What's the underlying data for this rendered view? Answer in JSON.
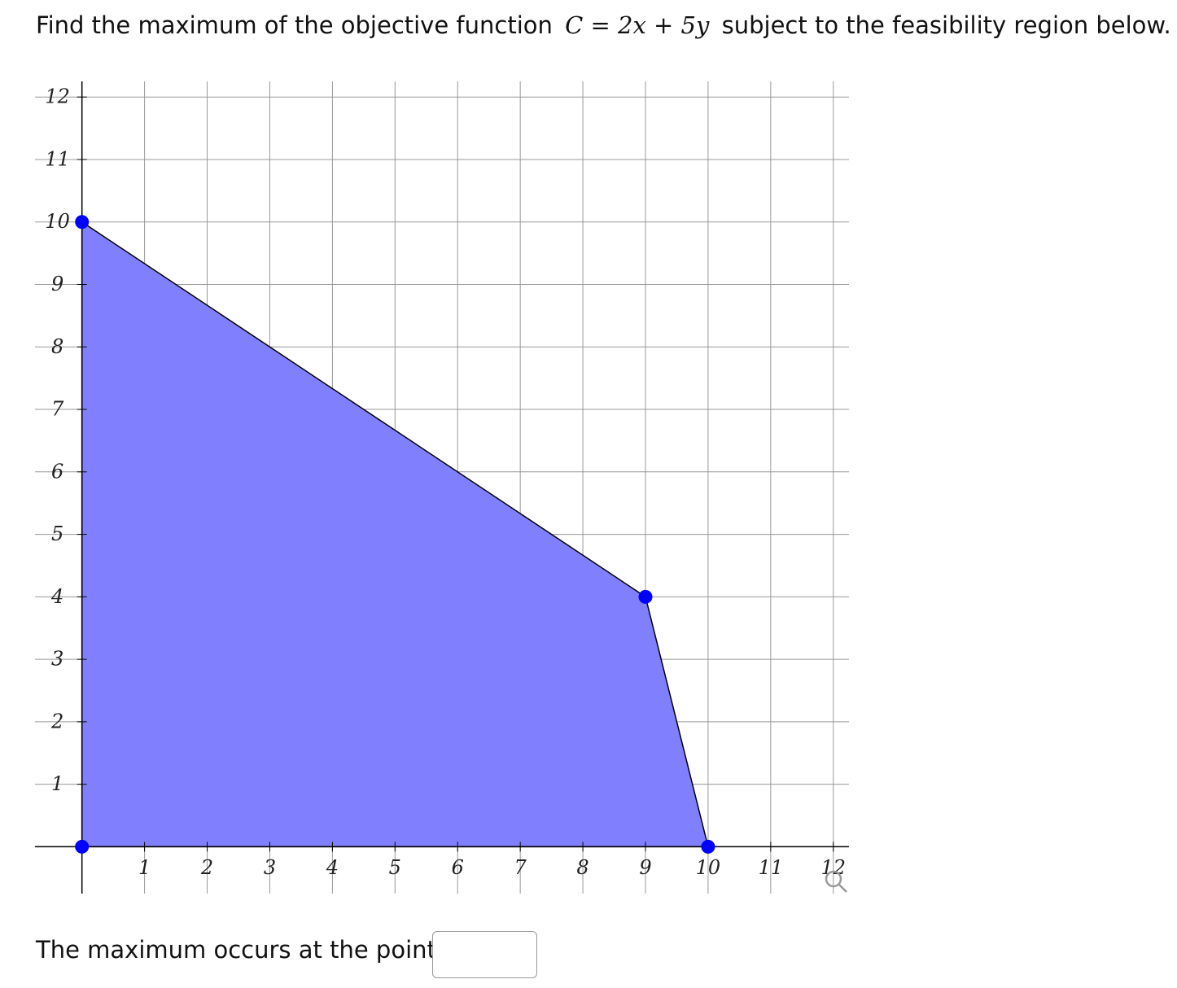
{
  "question": {
    "before": "Find the maximum of the objective function",
    "formula": "C = 2x + 5y",
    "after": "subject to the feasibility region below."
  },
  "chart_data": {
    "type": "polygon",
    "x": [
      0,
      0,
      9,
      10
    ],
    "y": [
      0,
      10,
      4,
      0
    ],
    "color": "#8080ff",
    "point_color": "#0000ff",
    "xlim": [
      -0.75,
      12.25
    ],
    "ylim": [
      -0.75,
      12.25
    ],
    "xticks": [
      1,
      2,
      3,
      4,
      5,
      6,
      7,
      8,
      9,
      10,
      11,
      12
    ],
    "yticks": [
      1,
      2,
      3,
      4,
      5,
      6,
      7,
      8,
      9,
      10,
      11,
      12
    ],
    "grid": true
  },
  "answer": {
    "prompt": "The maximum occurs at the point:"
  }
}
